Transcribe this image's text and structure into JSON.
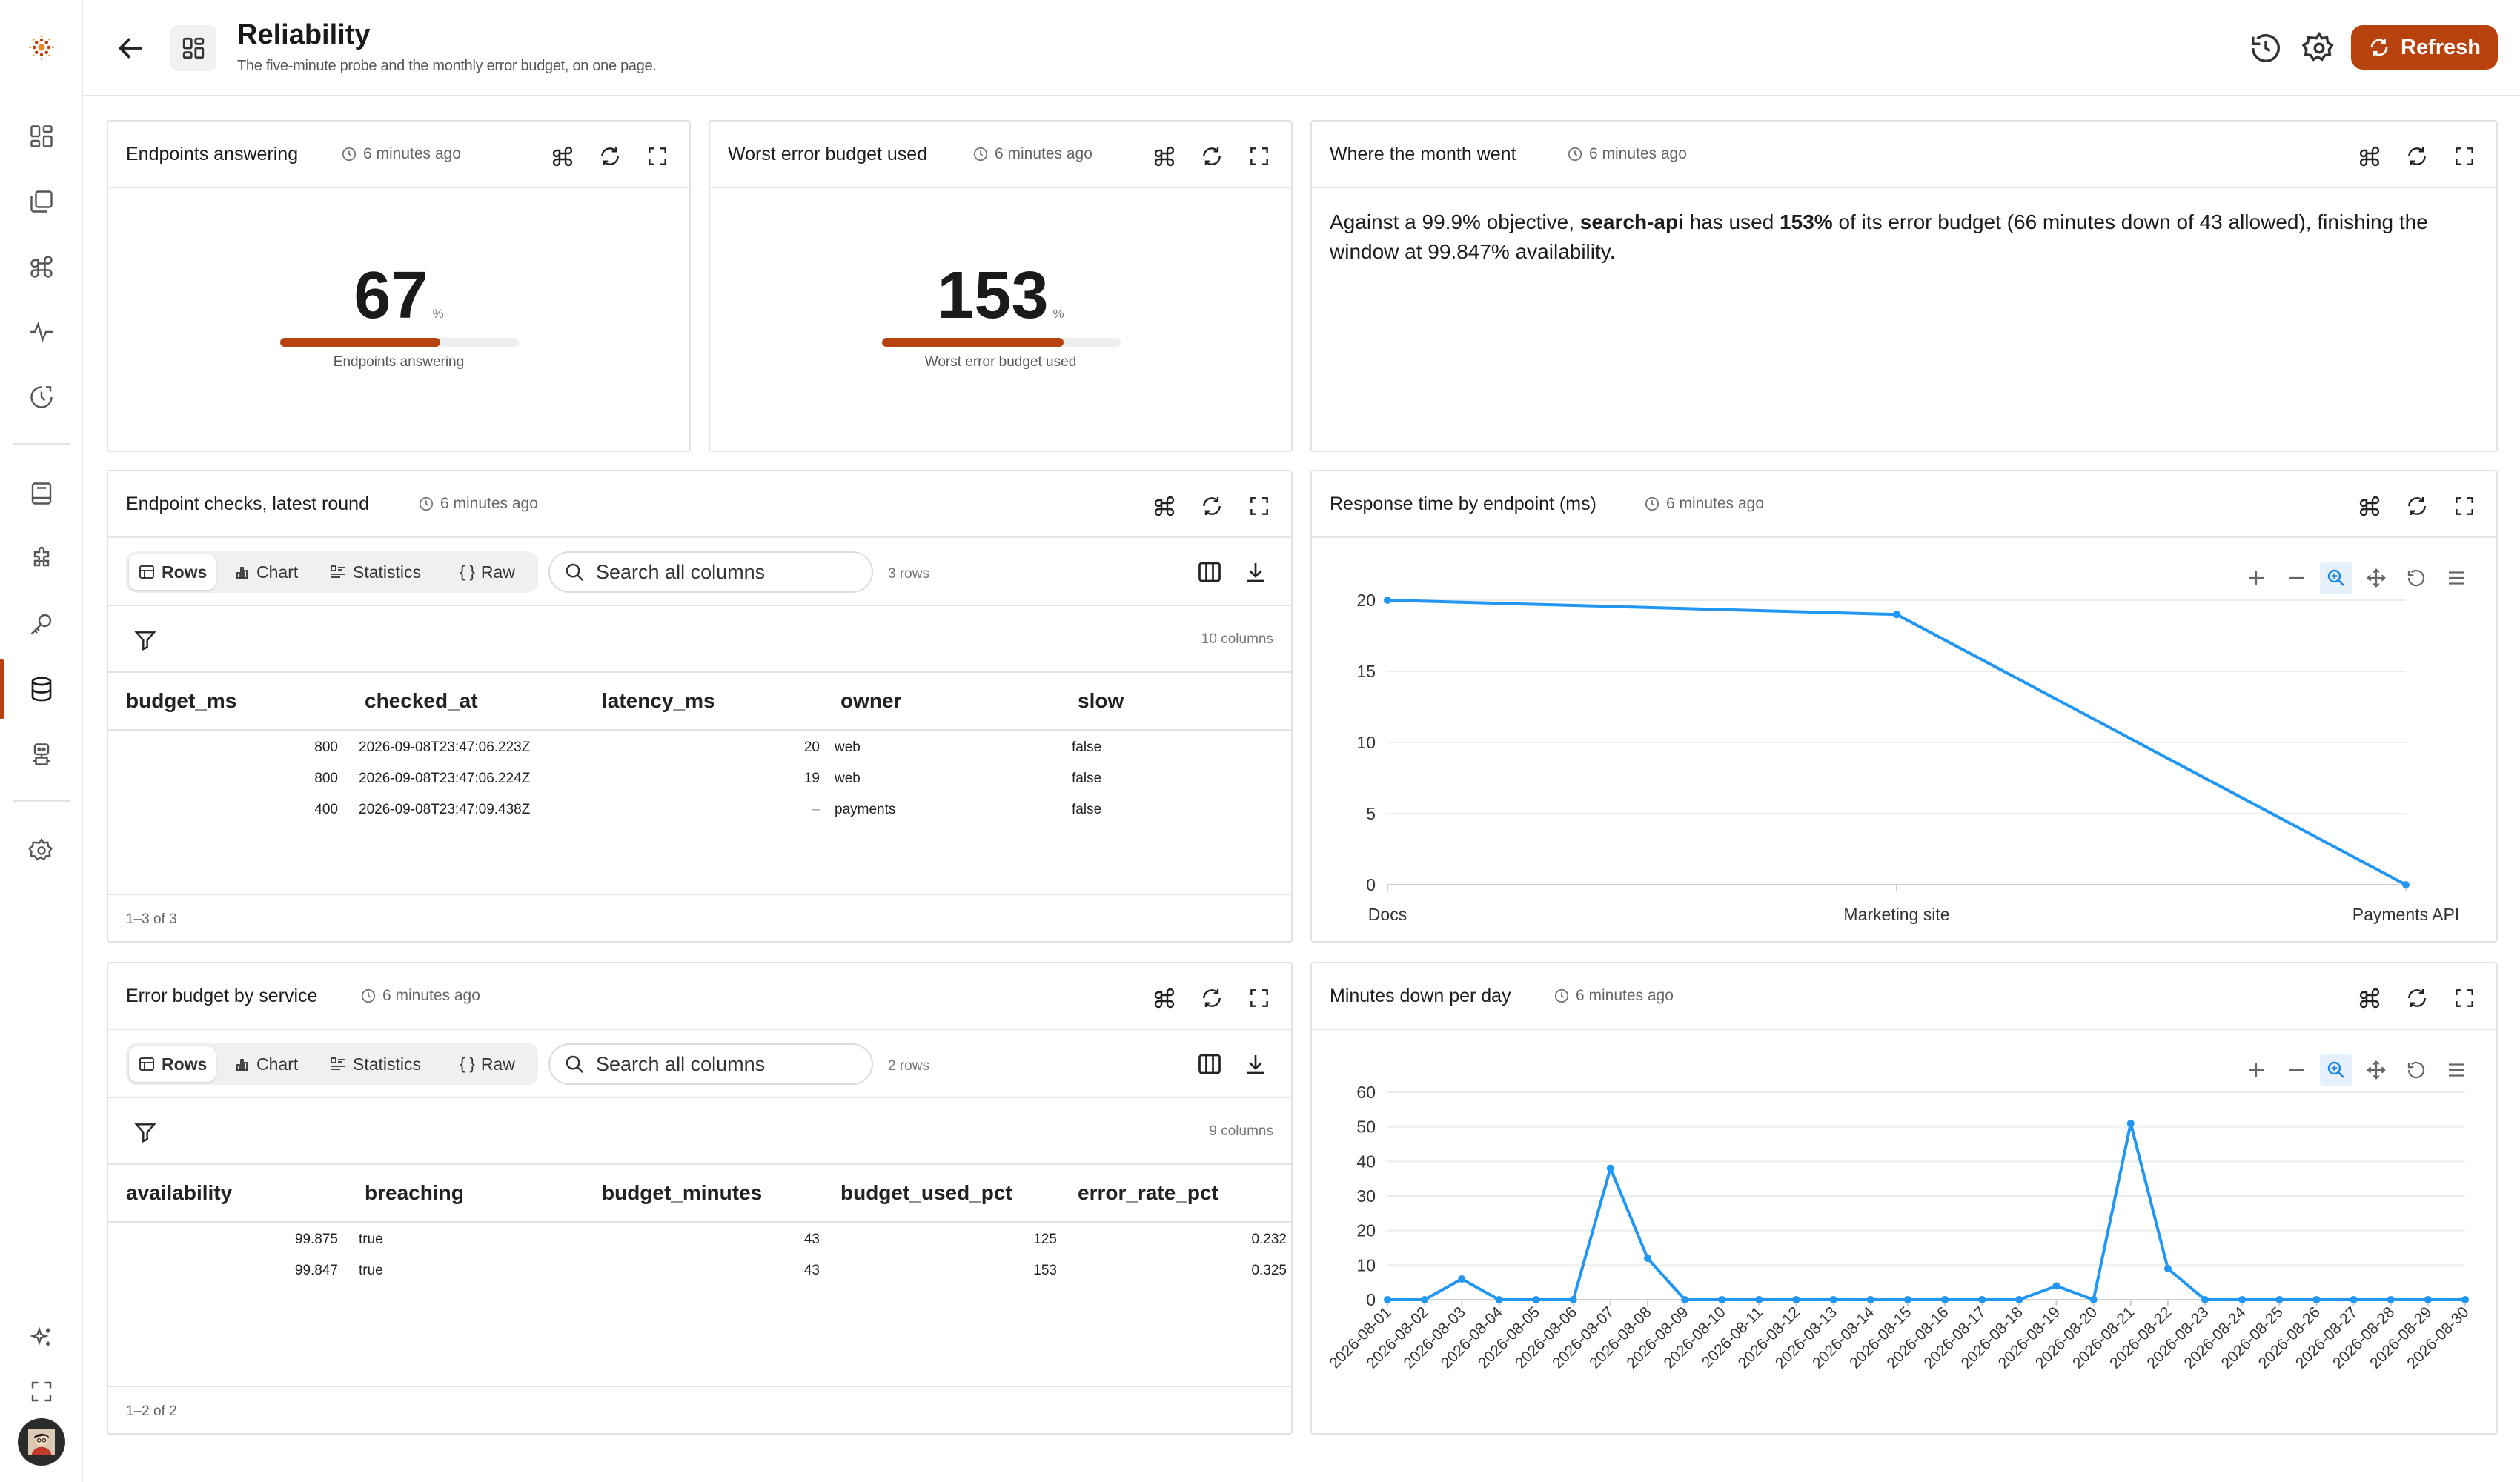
{
  "header": {
    "title": "Reliability",
    "subtitle": "The five-minute probe and the monthly error budget, on one page.",
    "refresh_label": "Refresh"
  },
  "sidebar": {
    "items": [
      {
        "icon": "dashboards-icon"
      },
      {
        "icon": "collections-icon"
      },
      {
        "icon": "integrations-icon"
      },
      {
        "icon": "activity-icon"
      },
      {
        "icon": "history-icon"
      },
      {
        "icon": "notebook-icon"
      },
      {
        "icon": "plugins-icon"
      },
      {
        "icon": "keys-icon"
      },
      {
        "icon": "database-icon"
      },
      {
        "icon": "bot-icon"
      },
      {
        "icon": "settings-icon"
      }
    ],
    "active": "database-icon"
  },
  "cards": {
    "endpoints": {
      "title": "Endpoints answering",
      "time": "6 minutes ago",
      "value": "67",
      "unit": "%",
      "fraction": 0.67,
      "caption": "Endpoints answering"
    },
    "budget": {
      "title": "Worst error budget used",
      "time": "6 minutes ago",
      "value": "153",
      "unit": "%",
      "fraction": 0.76,
      "caption": "Worst error budget used"
    },
    "month": {
      "title": "Where the month went",
      "time": "6 minutes ago",
      "text_a": "Against a 99.9% objective, ",
      "service": "search-api",
      "text_b": " has used ",
      "pct": "153%",
      "text_c": " of its error budget (66 minutes down of 43 allowed), finishing the window at 99.847% availability."
    },
    "checks": {
      "title": "Endpoint checks, latest round",
      "time": "6 minutes ago",
      "tabs": [
        "Rows",
        "Chart",
        "Statistics",
        "Raw"
      ],
      "search_placeholder": "Search all columns",
      "row_count": "3 rows",
      "col_count": "10 columns",
      "columns": [
        "budget_ms",
        "checked_at",
        "latency_ms",
        "owner",
        "slow"
      ],
      "rows": [
        [
          "800",
          "2026-09-08T23:47:06.223Z",
          "20",
          "web",
          "false"
        ],
        [
          "800",
          "2026-09-08T23:47:06.224Z",
          "19",
          "web",
          "false"
        ],
        [
          "400",
          "2026-09-08T23:47:09.438Z",
          "–",
          "payments",
          "false"
        ]
      ],
      "footer": "1–3 of 3"
    },
    "errbudget": {
      "title": "Error budget by service",
      "time": "6 minutes ago",
      "tabs": [
        "Rows",
        "Chart",
        "Statistics",
        "Raw"
      ],
      "search_placeholder": "Search all columns",
      "row_count": "2 rows",
      "col_count": "9 columns",
      "columns": [
        "availability",
        "breaching",
        "budget_minutes",
        "budget_used_pct",
        "error_rate_pct"
      ],
      "rows": [
        [
          "99.875",
          "true",
          "43",
          "125",
          "0.232"
        ],
        [
          "99.847",
          "true",
          "43",
          "153",
          "0.325"
        ]
      ],
      "footer": "1–2 of 2"
    },
    "response": {
      "title": "Response time by endpoint (ms)",
      "time": "6 minutes ago"
    },
    "minutes": {
      "title": "Minutes down per day",
      "time": "6 minutes ago"
    }
  },
  "chart_data": [
    {
      "type": "line",
      "categories": [
        "Docs",
        "Marketing site",
        "Payments API"
      ],
      "values": [
        20,
        19,
        0
      ],
      "ylim": [
        0,
        20
      ],
      "yticks": [
        0,
        5,
        10,
        15,
        20
      ],
      "grid": true,
      "color": "#2196f3"
    },
    {
      "type": "line",
      "categories": [
        "2026-08-01",
        "2026-08-02",
        "2026-08-03",
        "2026-08-04",
        "2026-08-05",
        "2026-08-06",
        "2026-08-07",
        "2026-08-08",
        "2026-08-09",
        "2026-08-10",
        "2026-08-11",
        "2026-08-12",
        "2026-08-13",
        "2026-08-14",
        "2026-08-15",
        "2026-08-16",
        "2026-08-17",
        "2026-08-18",
        "2026-08-19",
        "2026-08-20",
        "2026-08-21",
        "2026-08-22",
        "2026-08-23",
        "2026-08-24",
        "2026-08-25",
        "2026-08-26",
        "2026-08-27",
        "2026-08-28",
        "2026-08-29",
        "2026-08-30"
      ],
      "values": [
        0,
        0,
        6,
        0,
        0,
        0,
        38,
        12,
        0,
        0,
        0,
        0,
        0,
        0,
        0,
        0,
        0,
        0,
        4,
        0,
        51,
        9,
        0,
        0,
        0,
        0,
        0,
        0,
        0,
        0
      ],
      "ylim": [
        0,
        60
      ],
      "yticks": [
        0,
        10,
        20,
        30,
        40,
        50,
        60
      ],
      "grid": true,
      "color": "#2196f3"
    }
  ]
}
